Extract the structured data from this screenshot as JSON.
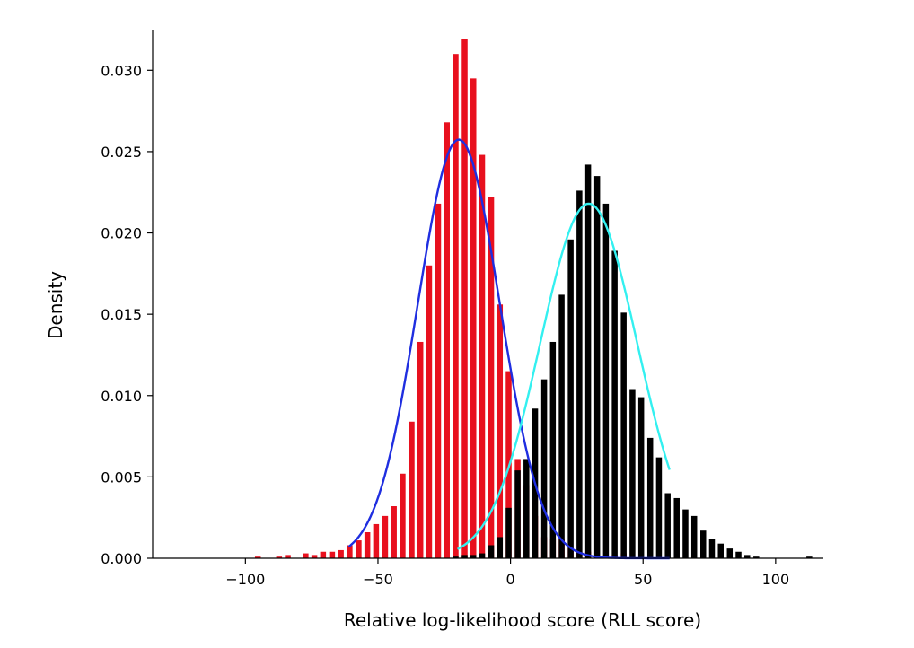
{
  "chart_data": {
    "type": "bar",
    "title": "",
    "xlabel": "Relative log-likelihood score (RLL score)",
    "ylabel": "Density",
    "xlim": [
      -135,
      118
    ],
    "ylim": [
      0,
      0.0325
    ],
    "grid": false,
    "legend": "none",
    "x_ticks": [
      -100,
      -50,
      0,
      50,
      100
    ],
    "x_tick_labels": [
      "−100",
      "−50",
      "0",
      "50",
      "100"
    ],
    "y_ticks": [
      0,
      0.005,
      0.01,
      0.015,
      0.02,
      0.025,
      0.03
    ],
    "y_tick_labels": [
      "0.000",
      "0.005",
      "0.010",
      "0.015",
      "0.020",
      "0.025",
      "0.030"
    ],
    "bar_width": 2.2,
    "series": [
      {
        "kind": "histogram",
        "color": "#e8101e",
        "bars": [
          {
            "x": -95.3,
            "y": 0.0001
          },
          {
            "x": -87.3,
            "y": 0.0001
          },
          {
            "x": -84.0,
            "y": 0.0002
          },
          {
            "x": -77.3,
            "y": 0.0003
          },
          {
            "x": -74.0,
            "y": 0.0002
          },
          {
            "x": -70.7,
            "y": 0.0004
          },
          {
            "x": -67.3,
            "y": 0.0004
          },
          {
            "x": -64.0,
            "y": 0.0005
          },
          {
            "x": -60.7,
            "y": 0.0008
          },
          {
            "x": -57.3,
            "y": 0.0011
          },
          {
            "x": -54.0,
            "y": 0.0016
          },
          {
            "x": -50.7,
            "y": 0.0021
          },
          {
            "x": -47.3,
            "y": 0.0026
          },
          {
            "x": -44.0,
            "y": 0.0032
          },
          {
            "x": -40.7,
            "y": 0.0052
          },
          {
            "x": -37.3,
            "y": 0.0084
          },
          {
            "x": -34.0,
            "y": 0.0133
          },
          {
            "x": -30.7,
            "y": 0.018
          },
          {
            "x": -27.3,
            "y": 0.0218
          },
          {
            "x": -24.0,
            "y": 0.0268
          },
          {
            "x": -20.7,
            "y": 0.031
          },
          {
            "x": -17.3,
            "y": 0.0319
          },
          {
            "x": -14.0,
            "y": 0.0295
          },
          {
            "x": -10.7,
            "y": 0.0248
          },
          {
            "x": -7.3,
            "y": 0.0222
          },
          {
            "x": -4.0,
            "y": 0.0156
          },
          {
            "x": -0.7,
            "y": 0.0115
          },
          {
            "x": 2.7,
            "y": 0.0061
          },
          {
            "x": 6.0,
            "y": 0.0045
          },
          {
            "x": 9.3,
            "y": 0.0026
          },
          {
            "x": 12.7,
            "y": 0.0013
          },
          {
            "x": 16.0,
            "y": 0.0012
          },
          {
            "x": 19.3,
            "y": 0.0012
          },
          {
            "x": 22.7,
            "y": 0.0006
          },
          {
            "x": 26.0,
            "y": 0.0004
          },
          {
            "x": 29.3,
            "y": 0.0004
          },
          {
            "x": 39.3,
            "y": 0.0002
          },
          {
            "x": 42.7,
            "y": 0.0003
          }
        ]
      },
      {
        "kind": "histogram",
        "color": "#000000",
        "bars": [
          {
            "x": -20.7,
            "y": 0.0001
          },
          {
            "x": -17.3,
            "y": 0.0002
          },
          {
            "x": -14.0,
            "y": 0.0002
          },
          {
            "x": -10.7,
            "y": 0.0003
          },
          {
            "x": -7.3,
            "y": 0.0008
          },
          {
            "x": -4.0,
            "y": 0.0013
          },
          {
            "x": -0.7,
            "y": 0.0031
          },
          {
            "x": 2.7,
            "y": 0.0054
          },
          {
            "x": 6.0,
            "y": 0.0061
          },
          {
            "x": 9.3,
            "y": 0.0092
          },
          {
            "x": 12.7,
            "y": 0.011
          },
          {
            "x": 16.0,
            "y": 0.0133
          },
          {
            "x": 19.3,
            "y": 0.0162
          },
          {
            "x": 22.7,
            "y": 0.0196
          },
          {
            "x": 26.0,
            "y": 0.0226
          },
          {
            "x": 29.3,
            "y": 0.0242
          },
          {
            "x": 32.7,
            "y": 0.0235
          },
          {
            "x": 36.0,
            "y": 0.0218
          },
          {
            "x": 39.3,
            "y": 0.0189
          },
          {
            "x": 42.7,
            "y": 0.0151
          },
          {
            "x": 46.0,
            "y": 0.0104
          },
          {
            "x": 49.3,
            "y": 0.0099
          },
          {
            "x": 52.7,
            "y": 0.0074
          },
          {
            "x": 56.0,
            "y": 0.0062
          },
          {
            "x": 59.3,
            "y": 0.004
          },
          {
            "x": 62.7,
            "y": 0.0037
          },
          {
            "x": 66.0,
            "y": 0.003
          },
          {
            "x": 69.3,
            "y": 0.0026
          },
          {
            "x": 72.7,
            "y": 0.0017
          },
          {
            "x": 76.0,
            "y": 0.0012
          },
          {
            "x": 79.3,
            "y": 0.0009
          },
          {
            "x": 82.7,
            "y": 0.0006
          },
          {
            "x": 86.0,
            "y": 0.0004
          },
          {
            "x": 89.3,
            "y": 0.0002
          },
          {
            "x": 92.7,
            "y": 0.0001
          },
          {
            "x": 112.7,
            "y": 0.0001
          }
        ]
      },
      {
        "kind": "normal-curve",
        "color": "#1f2ee0",
        "mean": -19.5,
        "sd": 15.5,
        "x_range": [
          -61,
          60
        ]
      },
      {
        "kind": "normal-curve",
        "color": "#33f0f0",
        "mean": 29.5,
        "sd": 18.3,
        "x_range": [
          -20,
          60
        ]
      }
    ]
  }
}
